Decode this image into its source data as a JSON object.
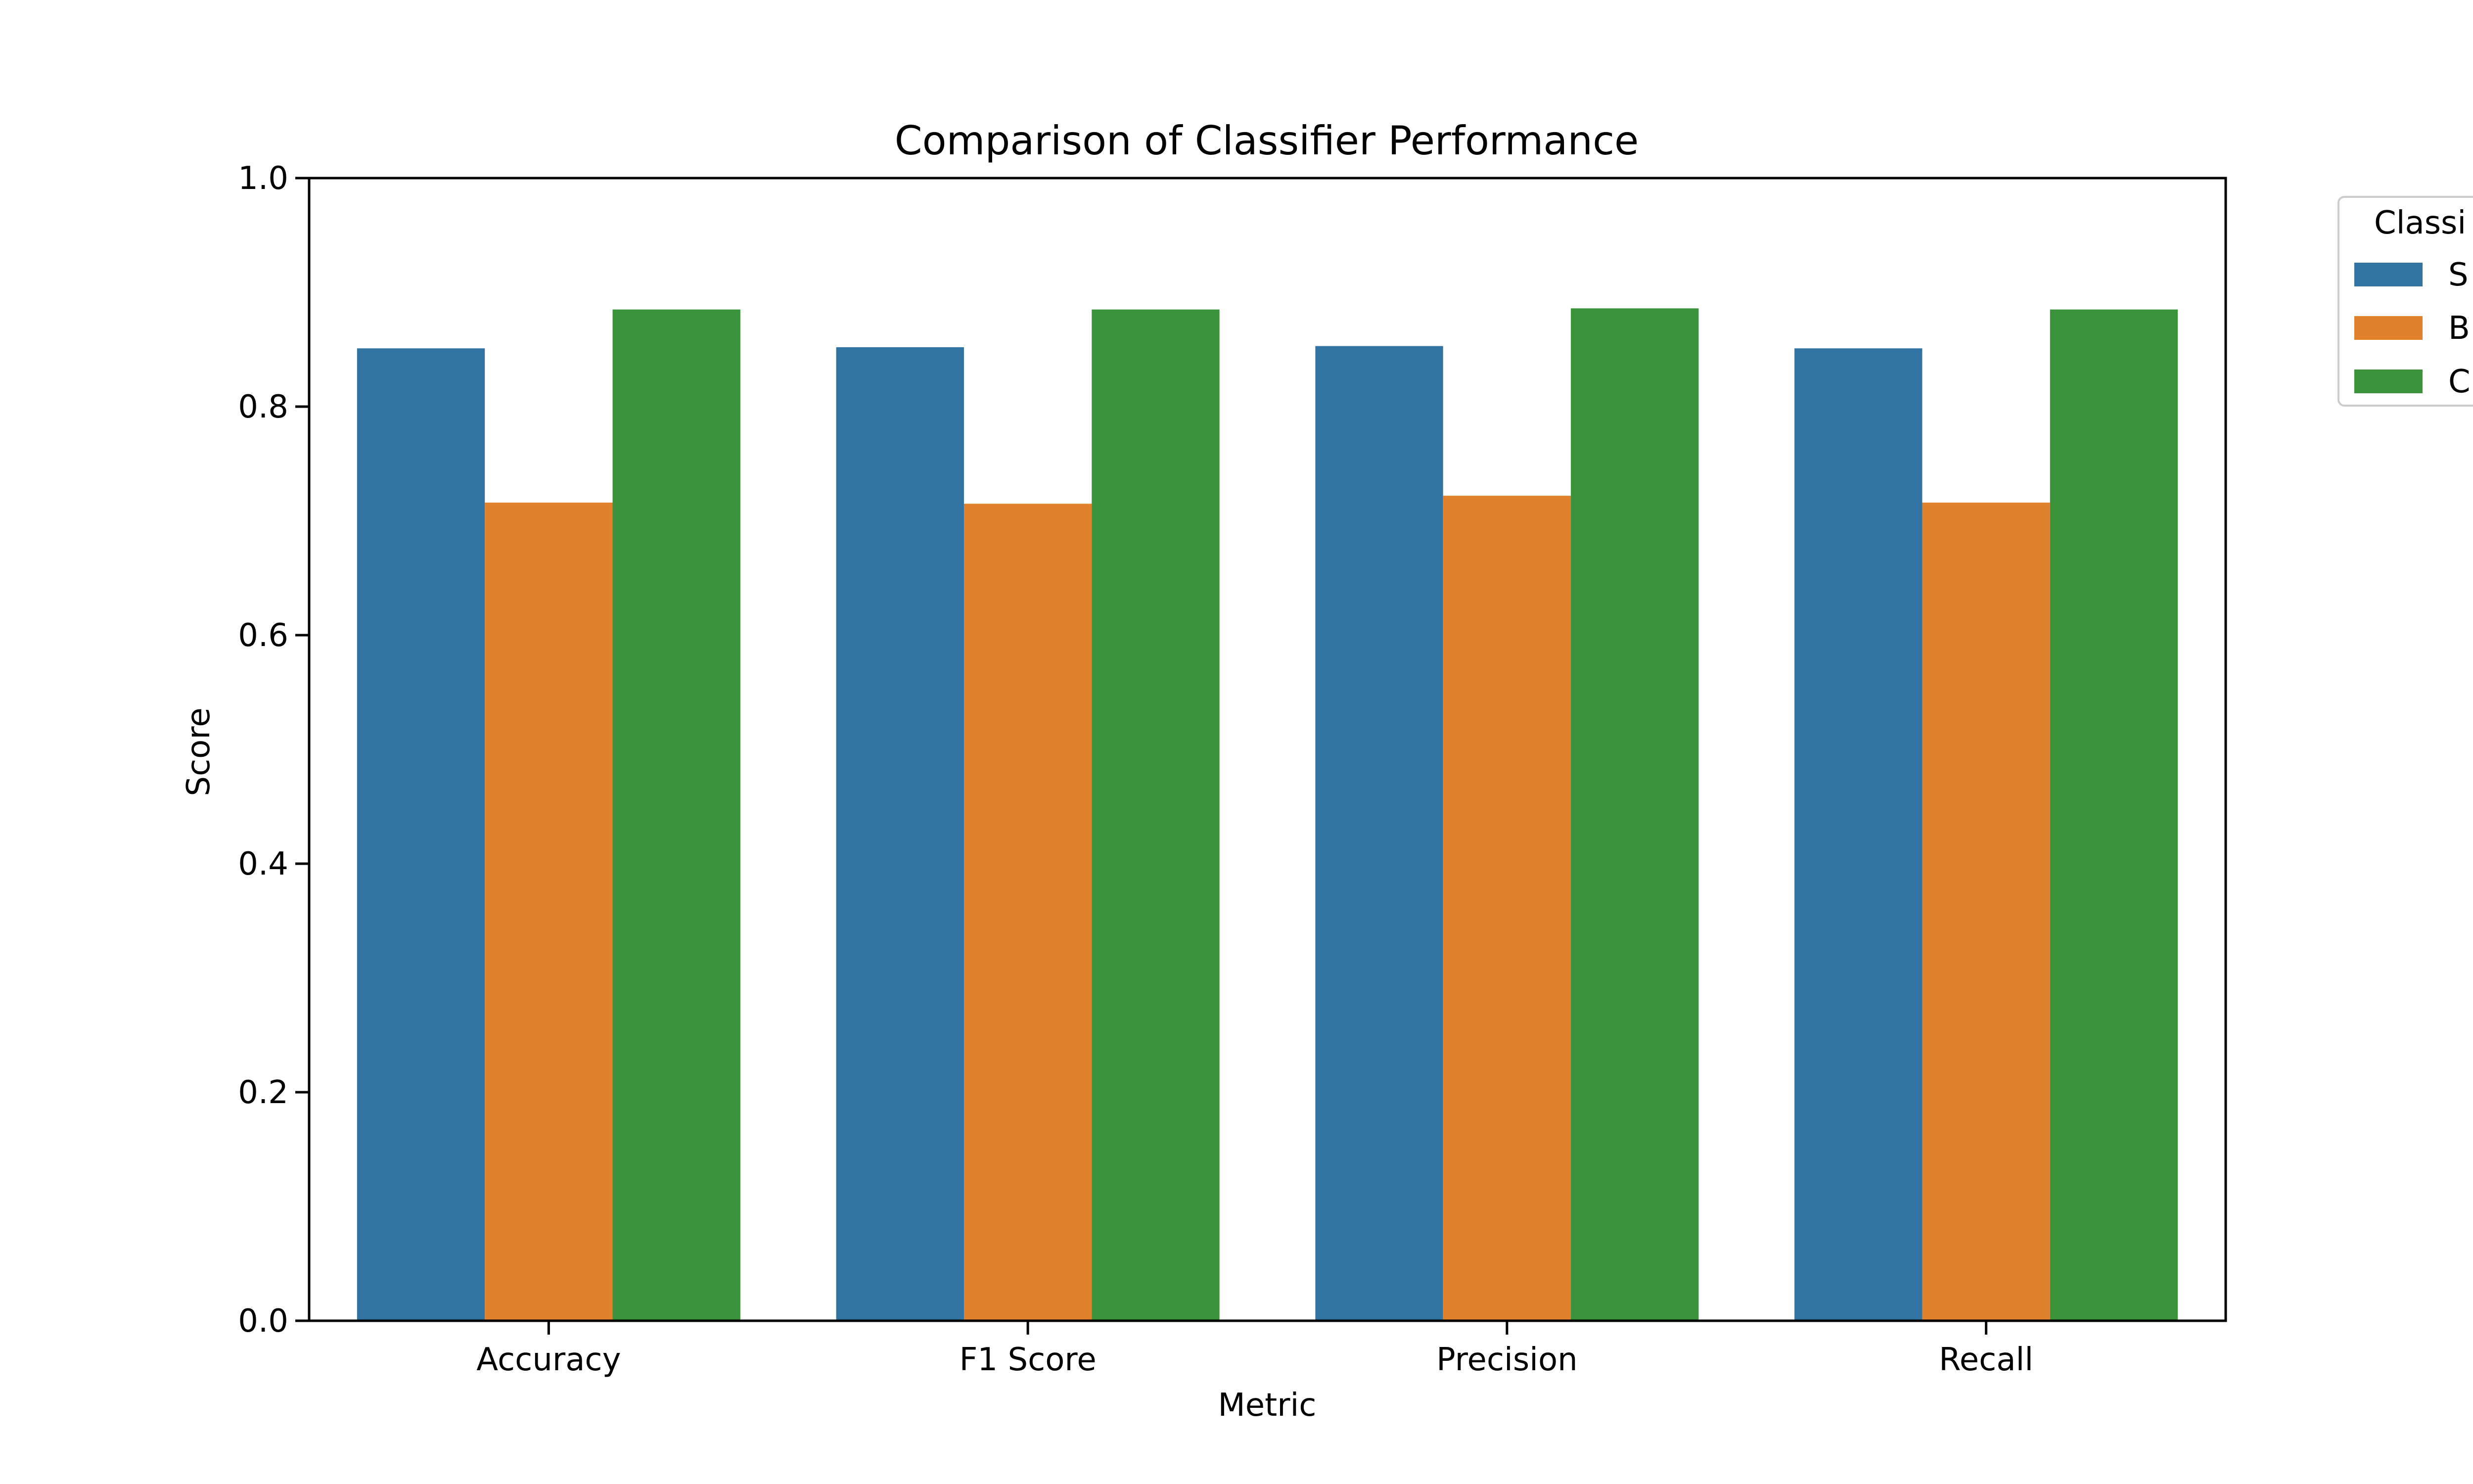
{
  "chart_data": {
    "type": "bar",
    "title": "Comparison of Classifier Performance",
    "xlabel": "Metric",
    "ylabel": "Score",
    "ylim": [
      0,
      1.0
    ],
    "yticks": [
      "0.0",
      "0.2",
      "0.4",
      "0.6",
      "0.8",
      "1.0"
    ],
    "ytick_values": [
      0,
      0.2,
      0.4,
      0.6,
      0.8,
      1.0
    ],
    "categories": [
      "Accuracy",
      "F1 Score",
      "Precision",
      "Recall"
    ],
    "legend": {
      "title": "Classi",
      "position": "outside top-right",
      "labels": [
        "S",
        "B",
        "C"
      ]
    },
    "series": [
      {
        "name": "S",
        "color": "#3274a1",
        "values": [
          0.851,
          0.852,
          0.853,
          0.851
        ]
      },
      {
        "name": "B",
        "color": "#e1812c",
        "values": [
          0.716,
          0.715,
          0.722,
          0.716
        ]
      },
      {
        "name": "C",
        "color": "#3a923a",
        "values": [
          0.885,
          0.885,
          0.886,
          0.885
        ]
      }
    ]
  }
}
